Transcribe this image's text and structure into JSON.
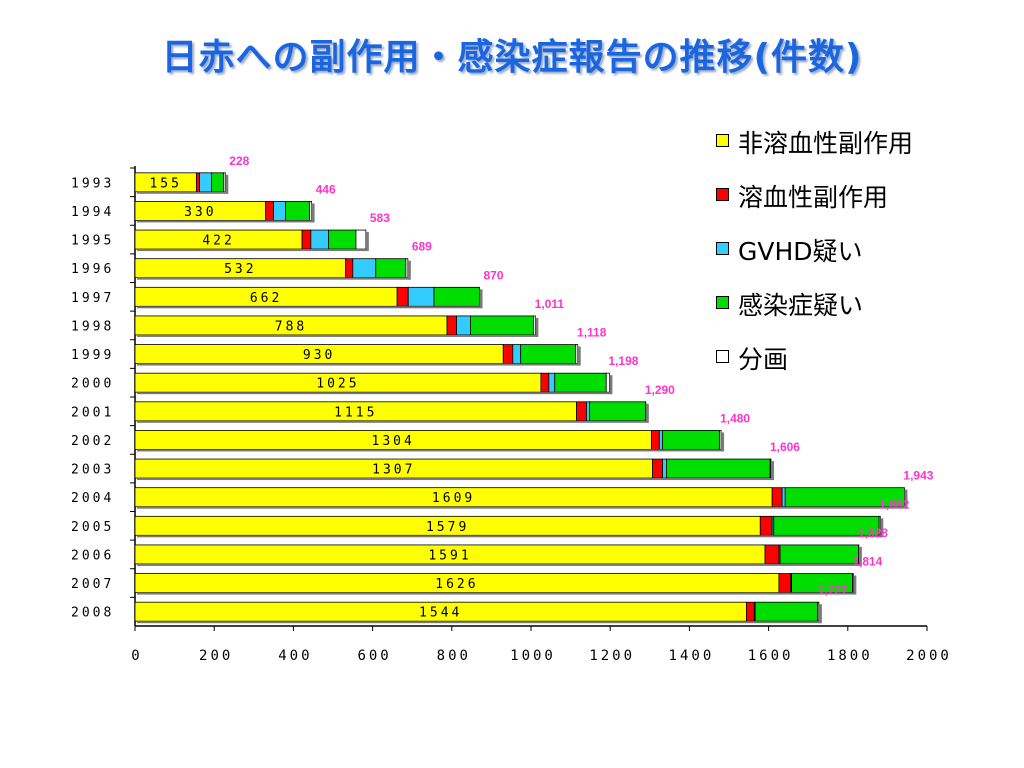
{
  "title": "日赤への副作用・感染症報告の推移(件数)",
  "colors": {
    "non_hemolytic": "#ffff00",
    "hemolytic": "#ff0000",
    "gvhd": "#33ccff",
    "infection": "#00dd00",
    "fraction": "#ffffff",
    "total_label": "#ff33cc",
    "title": "#1a66e0"
  },
  "chart_data": {
    "type": "bar",
    "orientation": "horizontal",
    "stacked": true,
    "categories": [
      "1993",
      "1994",
      "1995",
      "1996",
      "1997",
      "1998",
      "1999",
      "2000",
      "2001",
      "2002",
      "2003",
      "2004",
      "2005",
      "2006",
      "2007",
      "2008"
    ],
    "category_labels": [
      "1993",
      "1994",
      "1995",
      "1996",
      "1997",
      "1998",
      "1999",
      "2000",
      "2001",
      "2002",
      "2003",
      "2004",
      "2005",
      "2006",
      "2007",
      "2008"
    ],
    "series": [
      {
        "name": "非溶血性副作用",
        "color": "#ffff00",
        "values": [
          155,
          330,
          422,
          532,
          662,
          788,
          930,
          1025,
          1115,
          1304,
          1307,
          1609,
          1579,
          1591,
          1626,
          1544
        ]
      },
      {
        "name": "溶血性副作用",
        "color": "#ff0000",
        "values": [
          8,
          20,
          22,
          18,
          28,
          24,
          24,
          20,
          25,
          20,
          25,
          25,
          30,
          35,
          30,
          20
        ]
      },
      {
        "name": "GVHD疑い",
        "color": "#33ccff",
        "values": [
          30,
          30,
          45,
          58,
          65,
          35,
          20,
          15,
          8,
          8,
          10,
          8,
          4,
          3,
          2,
          2
        ]
      },
      {
        "name": "感染症疑い",
        "color": "#00dd00",
        "values": [
          31,
          61,
          69,
          76,
          115,
          159,
          139,
          130,
          141,
          144,
          262,
          301,
          266,
          198,
          154,
          158
        ]
      },
      {
        "name": "分画",
        "color": "#ffffff",
        "values": [
          4,
          5,
          25,
          5,
          0,
          5,
          5,
          8,
          1,
          4,
          2,
          0,
          3,
          1,
          2,
          3
        ]
      }
    ],
    "inner_labels": [
      "155",
      "330",
      "422",
      "532",
      "662",
      "788",
      "930",
      "1025",
      "1115",
      "1304",
      "1307",
      "1609",
      "1579",
      "1591",
      "1626",
      "1544"
    ],
    "totals": [
      228,
      446,
      583,
      689,
      870,
      1011,
      1118,
      1198,
      1290,
      1480,
      1606,
      1943,
      1882,
      1828,
      1814,
      1727
    ],
    "total_labels": [
      "228",
      "446",
      "583",
      "689",
      "870",
      "1,011",
      "1,118",
      "1,198",
      "1,290",
      "1,480",
      "1,606",
      "1,943",
      "1,882",
      "1,828",
      "1,814",
      "1,727"
    ],
    "xlim": [
      0,
      2000
    ],
    "xticks": [
      0,
      200,
      400,
      600,
      800,
      1000,
      1200,
      1400,
      1600,
      1800,
      2000
    ],
    "xtick_labels": [
      "0",
      "200",
      "400",
      "600",
      "800",
      "1000",
      "1200",
      "1400",
      "1600",
      "1800",
      "2000"
    ],
    "grid": false,
    "legend_position": "top-right"
  }
}
